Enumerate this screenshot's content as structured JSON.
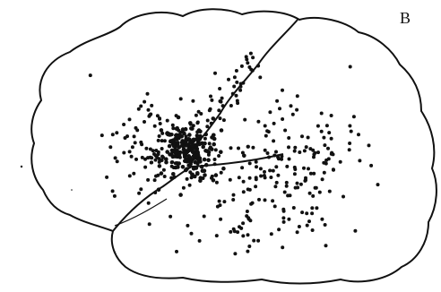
{
  "figure": {
    "panel_label": "B"
  },
  "colors": {
    "outline": "#111111",
    "dots": "#111111",
    "background": "#ffffff"
  }
}
